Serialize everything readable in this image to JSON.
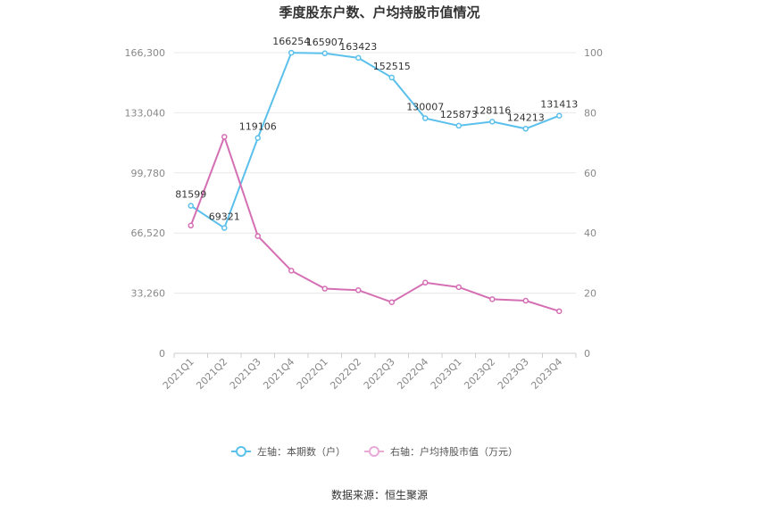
{
  "chart_data": {
    "type": "line",
    "title": "季度股东户数、户均持股市值情况",
    "categories": [
      "2021Q1",
      "2021Q2",
      "2021Q3",
      "2021Q4",
      "2022Q1",
      "2022Q2",
      "2022Q3",
      "2022Q4",
      "2023Q1",
      "2023Q2",
      "2023Q3",
      "2023Q4"
    ],
    "left_axis": {
      "ticks": [
        "0",
        "33,260",
        "66,520",
        "99,780",
        "133,040",
        "166,300"
      ],
      "ylim": [
        0,
        166300
      ]
    },
    "right_axis": {
      "ticks": [
        "0",
        "20",
        "40",
        "60",
        "80",
        "100"
      ],
      "ylim": [
        0,
        100
      ]
    },
    "series": [
      {
        "name": "左轴：本期数（户）",
        "axis": "left",
        "color": "#5bc0eb",
        "values": [
          81599,
          69321,
          119106,
          166254,
          165907,
          163423,
          152515,
          130007,
          125873,
          128116,
          124213,
          131413
        ],
        "labels": [
          "81599",
          "69321",
          "119106",
          "166254",
          "165907",
          "163423",
          "152515",
          "130007",
          "125873",
          "128116",
          "124213",
          "131413"
        ]
      },
      {
        "name": "右轴：户均持股市值（万元）",
        "axis": "right",
        "color": "#d56fb4",
        "values": [
          42.5,
          72.0,
          39.0,
          27.5,
          21.5,
          21.0,
          17.0,
          23.5,
          22.0,
          18.0,
          17.5,
          14.0
        ]
      }
    ],
    "grid": true,
    "legend_position": "bottom-center",
    "source": "数据来源：恒生聚源"
  }
}
